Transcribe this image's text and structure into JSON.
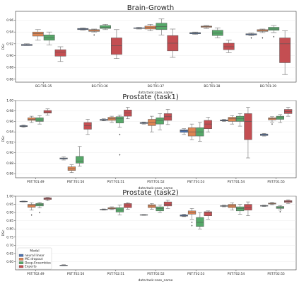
{
  "series": [
    {
      "name": "neural linear",
      "color": "#4c72b0"
    },
    {
      "name": "MC dropout",
      "color": "#dd8452"
    },
    {
      "name": "Deep-Ensembles",
      "color": "#55a868"
    },
    {
      "name": "Experts",
      "color": "#c44e52"
    }
  ],
  "legend": {
    "title": "Model",
    "placement": "lower-left of third panel"
  },
  "chart_data": [
    {
      "type": "box",
      "title": "Brain-Growth",
      "xlabel": "data:task:case_name",
      "ylabel": "DSc",
      "ylim": [
        0.855,
        0.975
      ],
      "yticks": [
        0.86,
        0.88,
        0.9,
        0.92,
        0.94,
        0.96
      ],
      "ytick_labels": [
        "0.86",
        "0.88",
        "0.90",
        "0.92",
        "0.94",
        "0.96"
      ],
      "categories": [
        "BG:T01:35",
        "BG:T01:36",
        "BG:T01:37",
        "BG:T01:38",
        "BG:T01:39"
      ],
      "boxes": [
        [
          [
            0.917,
            0.917,
            0.918,
            0.919,
            0.92,
            []
          ],
          [
            0.926,
            0.933,
            0.937,
            0.94,
            0.944,
            []
          ],
          [
            0.918,
            0.926,
            0.93,
            0.935,
            0.94,
            []
          ],
          [
            0.89,
            0.899,
            0.906,
            0.91,
            0.915,
            []
          ]
        ],
        [
          [
            0.943,
            0.944,
            0.945,
            0.946,
            0.947,
            []
          ],
          [
            0.94,
            0.941,
            0.943,
            0.944,
            0.945,
            [
              0.935
            ]
          ],
          [
            0.944,
            0.946,
            0.948,
            0.951,
            0.953,
            []
          ],
          [
            0.895,
            0.902,
            0.917,
            0.93,
            0.944,
            []
          ]
        ],
        [
          [
            0.945,
            0.946,
            0.947,
            0.947,
            0.948,
            []
          ],
          [
            0.942,
            0.945,
            0.948,
            0.95,
            0.953,
            []
          ],
          [
            0.935,
            0.944,
            0.949,
            0.955,
            0.962,
            []
          ],
          [
            0.897,
            0.908,
            0.921,
            0.934,
            0.945,
            []
          ]
        ],
        [
          [
            0.936,
            0.937,
            0.938,
            0.939,
            0.94,
            []
          ],
          [
            0.946,
            0.948,
            0.949,
            0.95,
            0.951,
            []
          ],
          [
            0.93,
            0.934,
            0.938,
            0.943,
            0.947,
            []
          ],
          [
            0.905,
            0.91,
            0.915,
            0.921,
            0.926,
            []
          ]
        ],
        [
          [
            0.934,
            0.935,
            0.936,
            0.937,
            0.938,
            [
              0.93
            ]
          ],
          [
            0.939,
            0.941,
            0.942,
            0.944,
            0.945,
            [
              0.93
            ]
          ],
          [
            0.939,
            0.943,
            0.945,
            0.948,
            0.951,
            [
              0.932
            ]
          ],
          [
            0.868,
            0.888,
            0.92,
            0.93,
            0.942,
            []
          ]
        ]
      ]
    },
    {
      "type": "box",
      "title": "Prostate (task1)",
      "xlabel": "data:task:case_name",
      "ylabel": "DSc",
      "ylim": [
        0.852,
        1.0
      ],
      "yticks": [
        0.86,
        0.88,
        0.9,
        0.92,
        0.94,
        0.96,
        0.98,
        1.0
      ],
      "ytick_labels": [
        "0.86",
        "0.88",
        "0.90",
        "0.92",
        "0.94",
        "0.96",
        "0.98",
        "1.00"
      ],
      "categories": [
        "PST:T01:49",
        "PST:T01:50",
        "PST:T01:51",
        "PST:T01:52",
        "PST:T01:53",
        "PST:T01:54",
        "PST:T01:55"
      ],
      "boxes": [
        [
          [
            0.949,
            0.95,
            0.951,
            0.952,
            0.953,
            []
          ],
          [
            0.958,
            0.962,
            0.964,
            0.967,
            0.97,
            []
          ],
          [
            0.955,
            0.96,
            0.963,
            0.967,
            0.971,
            []
          ],
          [
            0.972,
            0.976,
            0.978,
            0.981,
            0.984,
            []
          ]
        ],
        [
          [
            0.886,
            0.888,
            0.889,
            0.89,
            0.892,
            []
          ],
          [
            0.862,
            0.866,
            0.869,
            0.873,
            0.877,
            []
          ],
          [
            0.874,
            0.88,
            0.884,
            0.893,
            0.912,
            []
          ],
          [
            0.935,
            0.945,
            0.952,
            0.958,
            0.964,
            []
          ]
        ],
        [
          [
            0.961,
            0.962,
            0.963,
            0.964,
            0.965,
            []
          ],
          [
            0.958,
            0.962,
            0.965,
            0.968,
            0.97,
            []
          ],
          [
            0.949,
            0.957,
            0.965,
            0.969,
            0.972,
            [
              0.896,
              0.935
            ]
          ],
          [
            0.965,
            0.97,
            0.976,
            0.982,
            0.987,
            []
          ]
        ],
        [
          [
            0.955,
            0.956,
            0.957,
            0.958,
            0.959,
            []
          ],
          [
            0.94,
            0.952,
            0.958,
            0.964,
            0.97,
            []
          ],
          [
            0.944,
            0.955,
            0.962,
            0.967,
            0.975,
            []
          ],
          [
            0.954,
            0.962,
            0.969,
            0.975,
            0.983,
            []
          ]
        ],
        [
          [
            0.935,
            0.939,
            0.942,
            0.944,
            0.946,
            []
          ],
          [
            0.925,
            0.932,
            0.94,
            0.948,
            0.955,
            []
          ],
          [
            0.922,
            0.932,
            0.94,
            0.948,
            0.958,
            []
          ],
          [
            0.94,
            0.946,
            0.955,
            0.962,
            0.968,
            []
          ]
        ],
        [
          [
            0.96,
            0.961,
            0.962,
            0.963,
            0.964,
            []
          ],
          [
            0.955,
            0.96,
            0.965,
            0.968,
            0.971,
            []
          ],
          [
            0.951,
            0.96,
            0.965,
            0.97,
            0.975,
            []
          ],
          [
            0.89,
            0.925,
            0.96,
            0.975,
            0.987,
            []
          ]
        ],
        [
          [
            0.932,
            0.933,
            0.935,
            0.936,
            0.937,
            []
          ],
          [
            0.959,
            0.963,
            0.965,
            0.967,
            0.969,
            [
              0.955
            ]
          ],
          [
            0.958,
            0.964,
            0.967,
            0.97,
            0.973,
            []
          ],
          [
            0.97,
            0.975,
            0.979,
            0.983,
            0.987,
            []
          ]
        ]
      ]
    },
    {
      "type": "box",
      "title": "Prostate (task2)",
      "xlabel": "data:task:case_name",
      "ylabel": "DSc",
      "ylim": [
        0.55,
        1.0
      ],
      "yticks": [
        0.6,
        0.65,
        0.7,
        0.75,
        0.8,
        0.85,
        0.9,
        0.95,
        1.0
      ],
      "ytick_labels": [
        "0.60",
        "0.65",
        "0.70",
        "0.75",
        "0.80",
        "0.85",
        "0.90",
        "0.95",
        "1.00"
      ],
      "categories": [
        "PST:T02:49",
        "PST:T02:50",
        "PST:T02:51",
        "PST:T02:52",
        "PST:T02:53",
        "PST:T02:54",
        "PST:T02:55"
      ],
      "boxes": [
        [
          [
            0.965,
            0.967,
            0.968,
            0.969,
            0.97,
            []
          ],
          [
            0.915,
            0.932,
            0.945,
            0.95,
            0.96,
            [
              0.885
            ]
          ],
          [
            0.928,
            0.94,
            0.95,
            0.956,
            0.962,
            [
              0.9
            ]
          ],
          [
            0.972,
            0.98,
            0.985,
            0.99,
            0.993,
            []
          ]
        ],
        [
          [
            0.575,
            0.577,
            0.578,
            0.579,
            0.581,
            []
          ],
          null,
          null,
          null
        ],
        [
          [
            0.915,
            0.917,
            0.918,
            0.92,
            0.922,
            []
          ],
          [
            0.918,
            0.922,
            0.926,
            0.93,
            0.935,
            []
          ],
          [
            0.885,
            0.903,
            0.915,
            0.93,
            0.945,
            []
          ],
          [
            0.92,
            0.93,
            0.945,
            0.955,
            0.96,
            []
          ]
        ],
        [
          [
            0.883,
            0.884,
            0.885,
            0.887,
            0.888,
            []
          ],
          [
            0.92,
            0.93,
            0.94,
            0.948,
            0.955,
            []
          ],
          [
            0.9,
            0.91,
            0.925,
            0.935,
            0.945,
            []
          ],
          [
            0.925,
            0.94,
            0.95,
            0.965,
            0.975,
            []
          ]
        ],
        [
          [
            0.875,
            0.878,
            0.882,
            0.886,
            0.89,
            []
          ],
          [
            0.86,
            0.89,
            0.9,
            0.91,
            0.925,
            [
              0.84,
              0.82
            ]
          ],
          [
            0.8,
            0.815,
            0.84,
            0.87,
            0.9,
            []
          ],
          [
            0.86,
            0.88,
            0.9,
            0.905,
            0.91,
            []
          ]
        ],
        [
          [
            0.935,
            0.938,
            0.94,
            0.942,
            0.945,
            []
          ],
          [
            0.915,
            0.93,
            0.94,
            0.95,
            0.96,
            []
          ],
          [
            0.89,
            0.91,
            0.925,
            0.935,
            0.95,
            []
          ],
          [
            0.88,
            0.915,
            0.93,
            0.95,
            0.965,
            []
          ]
        ],
        [
          [
            0.937,
            0.939,
            0.941,
            0.943,
            0.945,
            []
          ],
          [
            0.948,
            0.952,
            0.955,
            0.958,
            0.962,
            []
          ],
          [
            0.915,
            0.925,
            0.93,
            0.937,
            0.942,
            [
              0.905
            ]
          ],
          [
            0.955,
            0.962,
            0.968,
            0.973,
            0.978,
            []
          ]
        ]
      ]
    }
  ]
}
